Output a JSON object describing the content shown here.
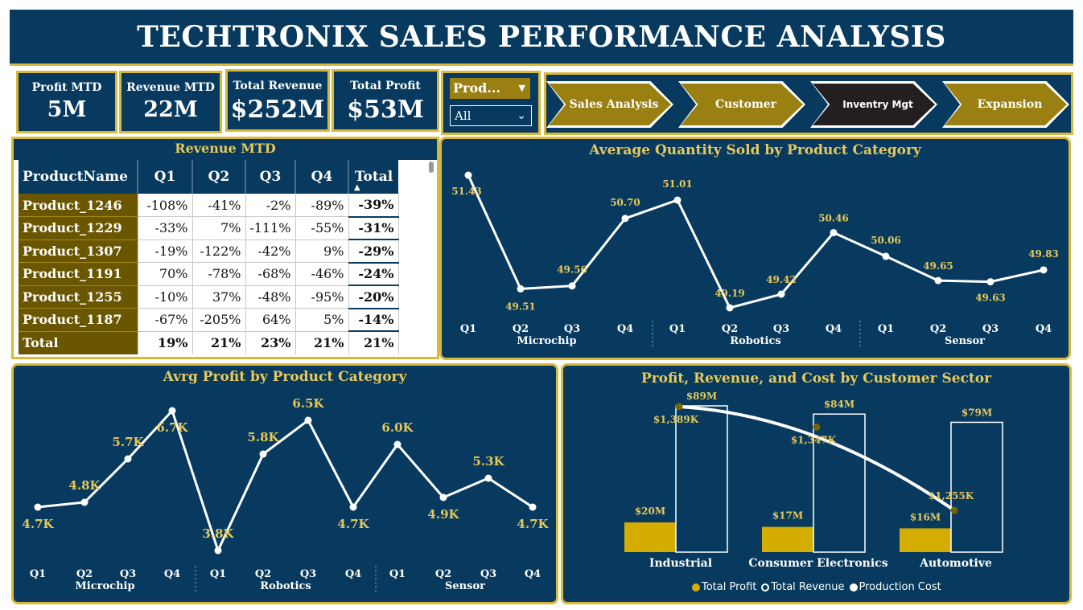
{
  "title": "TECHTRONIX SALES PERFORMANCE ANALYSIS",
  "kpis": [
    {
      "label": "Profit MTD",
      "value": "5M"
    },
    {
      "label": "Revenue MTD",
      "value": "22M"
    },
    {
      "label": "Total Revenue",
      "value": "$252M"
    },
    {
      "label": "Total Profit",
      "value": "$53M"
    }
  ],
  "slicer": {
    "header": "Prod...",
    "selected": "All"
  },
  "nav": [
    "Sales Analysis",
    "Customer",
    "Inventry Mgt",
    "Expansion"
  ],
  "colors": {
    "navy": "#073a5e",
    "gold": "#d9b93a",
    "label_gold": "#e8c95a",
    "bar_gold": "#d4ad00",
    "dark_gold": "#6b5600"
  },
  "matrix": {
    "title": "Revenue MTD",
    "columns": [
      "ProductName",
      "Q1",
      "Q2",
      "Q3",
      "Q4",
      "Total"
    ],
    "rows": [
      [
        "Product_1246",
        "-108%",
        "-41%",
        "-2%",
        "-89%",
        "-39%"
      ],
      [
        "Product_1229",
        "-33%",
        "7%",
        "-111%",
        "-55%",
        "-31%"
      ],
      [
        "Product_1307",
        "-19%",
        "-122%",
        "-42%",
        "9%",
        "-29%"
      ],
      [
        "Product_1191",
        "70%",
        "-78%",
        "-68%",
        "-46%",
        "-24%"
      ],
      [
        "Product_1255",
        "-10%",
        "37%",
        "-48%",
        "-95%",
        "-20%"
      ],
      [
        "Product_1187",
        "-67%",
        "-205%",
        "64%",
        "5%",
        "-14%"
      ]
    ],
    "total_row": [
      "Total",
      "19%",
      "21%",
      "23%",
      "21%",
      "21%"
    ]
  },
  "chart_data": [
    {
      "type": "line",
      "title": "Average Quantity Sold by Product Category",
      "groups": [
        "Microchip",
        "Robotics",
        "Sensor"
      ],
      "categories": [
        "Q1",
        "Q2",
        "Q3",
        "Q4"
      ],
      "values": [
        51.43,
        49.51,
        49.56,
        50.7,
        51.01,
        49.19,
        49.42,
        50.46,
        50.06,
        49.65,
        49.63,
        49.83
      ],
      "labels": [
        "51.43",
        "49.51",
        "49.56",
        "50.70",
        "51.01",
        "49.19",
        "49.42",
        "50.46",
        "50.06",
        "49.65",
        "49.63",
        "49.83"
      ]
    },
    {
      "type": "line",
      "title": "Avrg Profit by Product Category",
      "groups": [
        "Microchip",
        "Robotics",
        "Sensor"
      ],
      "categories": [
        "Q1",
        "Q2",
        "Q3",
        "Q4"
      ],
      "values": [
        4.7,
        4.8,
        5.7,
        6.7,
        3.8,
        5.8,
        6.5,
        4.7,
        6.0,
        4.9,
        5.3,
        4.7
      ],
      "labels": [
        "4.7K",
        "4.8K",
        "5.7K",
        "6.7K",
        "3.8K",
        "5.8K",
        "6.5K",
        "4.7K",
        "6.0K",
        "4.9K",
        "5.3K",
        "4.7K"
      ]
    },
    {
      "type": "bar",
      "title": "Profit, Revenue, and Cost by Customer Sector",
      "categories": [
        "Industrial",
        "Consumer Electronics",
        "Automotive"
      ],
      "series": [
        {
          "name": "Total Profit",
          "values": [
            20,
            17,
            16
          ],
          "labels": [
            "$20M",
            "$17M",
            "$16M"
          ]
        },
        {
          "name": "Total Revenue",
          "values": [
            89,
            84,
            79
          ],
          "labels": [
            "$89M",
            "$84M",
            "$79M"
          ]
        },
        {
          "name": "Production Cost",
          "values": [
            1389,
            1347,
            1255
          ],
          "labels": [
            "$1,389K",
            "$1,347K",
            "$1,255K"
          ]
        }
      ]
    }
  ]
}
